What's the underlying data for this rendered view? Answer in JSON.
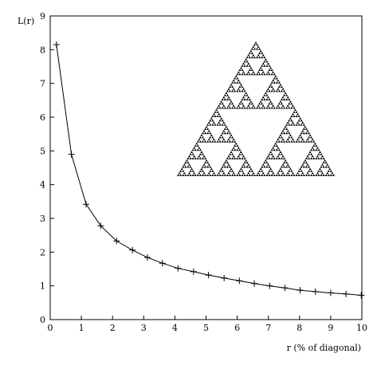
{
  "chart_data": {
    "type": "line",
    "title": "",
    "xlabel": "r (% of diagonal)",
    "ylabel": "L(r)",
    "xlim": [
      0,
      10
    ],
    "ylim": [
      0,
      9
    ],
    "xticks": [
      0,
      1,
      2,
      3,
      4,
      5,
      6,
      7,
      8,
      9,
      10
    ],
    "yticks": [
      0,
      1,
      2,
      3,
      4,
      5,
      6,
      7,
      8,
      9
    ],
    "grid": false,
    "marker": "plus",
    "series": [
      {
        "x": [
          0.2,
          0.68,
          1.15,
          1.62,
          2.13,
          2.64,
          3.12,
          3.6,
          4.1,
          4.6,
          5.08,
          5.58,
          6.07,
          6.55,
          7.04,
          7.53,
          8.02,
          8.51,
          9.0,
          9.49,
          9.98
        ],
        "y": [
          8.15,
          4.9,
          3.42,
          2.78,
          2.33,
          2.06,
          1.84,
          1.67,
          1.52,
          1.42,
          1.32,
          1.23,
          1.15,
          1.07,
          1.0,
          0.94,
          0.87,
          0.83,
          0.79,
          0.76,
          0.72
        ]
      }
    ],
    "inset": {
      "type": "sierpinski-triangle",
      "color": "#000000"
    }
  }
}
